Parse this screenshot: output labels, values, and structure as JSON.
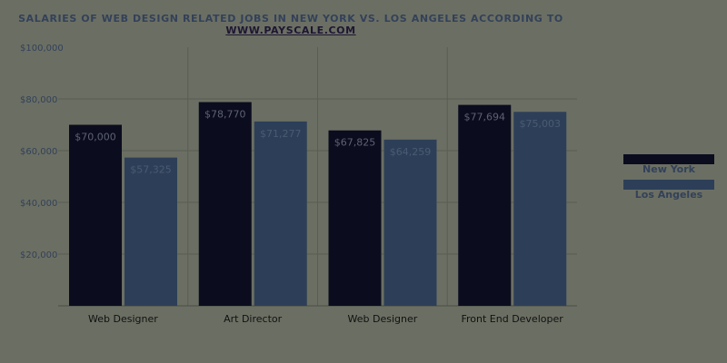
{
  "chart_data": {
    "type": "bar",
    "title": "SALARIES OF WEB DESIGN RELATED JOBS IN NEW YORK VS. LOS ANGELES ACCORDING TO",
    "title_link": "WWW.PAYSCALE.COM",
    "categories": [
      "Web Designer",
      "Art Director",
      "Web Designer",
      "Front End Developer"
    ],
    "series": [
      {
        "name": "New York",
        "color": "#0b0c1e",
        "values": [
          70000,
          78770,
          67825,
          77694
        ],
        "labels": [
          "$70,000",
          "$78,770",
          "$67,825",
          "$77,694"
        ]
      },
      {
        "name": "Los Angeles",
        "color": "#2d3f58",
        "values": [
          57325,
          71277,
          64259,
          75003
        ],
        "labels": [
          "$57,325",
          "$71,277",
          "$64,259",
          "$75,003"
        ]
      }
    ],
    "ylim": [
      0,
      100000
    ],
    "yticks": [
      20000,
      40000,
      60000,
      80000,
      100000
    ],
    "ytick_labels": [
      "$20,000",
      "$40,000",
      "$60,000",
      "$80,000",
      "$100,000"
    ],
    "grid": true,
    "legend": "right"
  }
}
